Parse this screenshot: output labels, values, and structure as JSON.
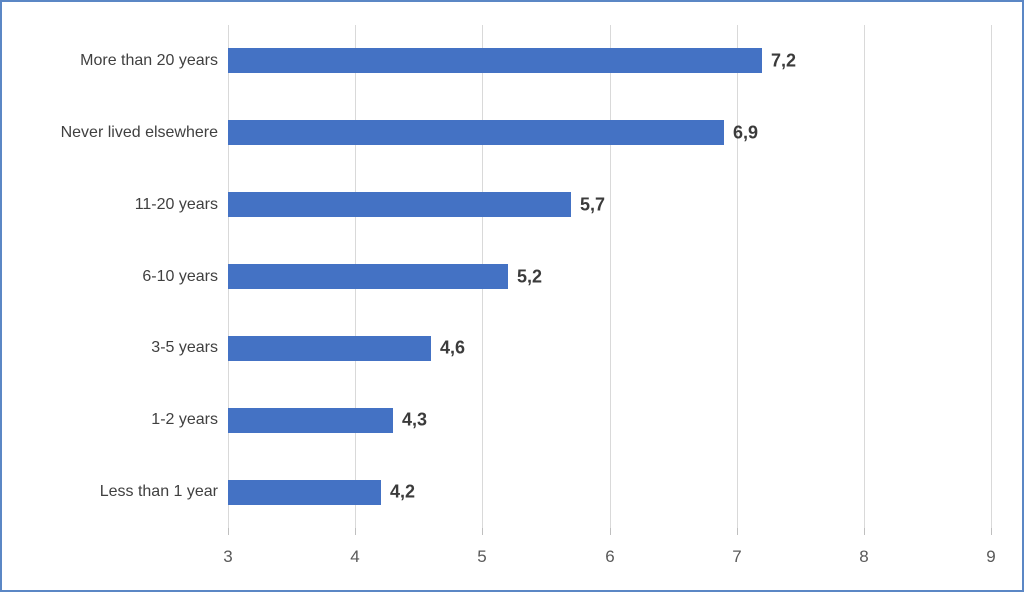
{
  "chart_data": {
    "type": "bar",
    "orientation": "horizontal",
    "title": "",
    "categories": [
      "More than 20 years",
      "Never lived elsewhere",
      "11-20 years",
      "6-10 years",
      "3-5 years",
      "1-2 years",
      "Less than 1 year"
    ],
    "values": [
      7.2,
      6.9,
      5.7,
      5.2,
      4.6,
      4.3,
      4.2
    ],
    "value_labels": [
      "7,2",
      "6,9",
      "5,7",
      "5,2",
      "4,6",
      "4,3",
      "4,2"
    ],
    "x_axis": {
      "min": 3,
      "max": 9,
      "ticks": [
        3,
        4,
        5,
        6,
        7,
        8,
        9
      ],
      "tick_labels": [
        "3",
        "4",
        "5",
        "6",
        "7",
        "8",
        "9"
      ]
    },
    "xlabel": "",
    "ylabel": "",
    "grid": true,
    "legend": false,
    "data_labels_shown": true
  },
  "colors": {
    "bar": "#4472C4",
    "gridline": "#D9D9D9",
    "tickmark": "#BFBFBF",
    "frame_border": "#5B87C5",
    "category_label": "#404040",
    "value_label": "#3B3B3B",
    "axis_label": "#595959",
    "background": "#FFFFFF"
  }
}
